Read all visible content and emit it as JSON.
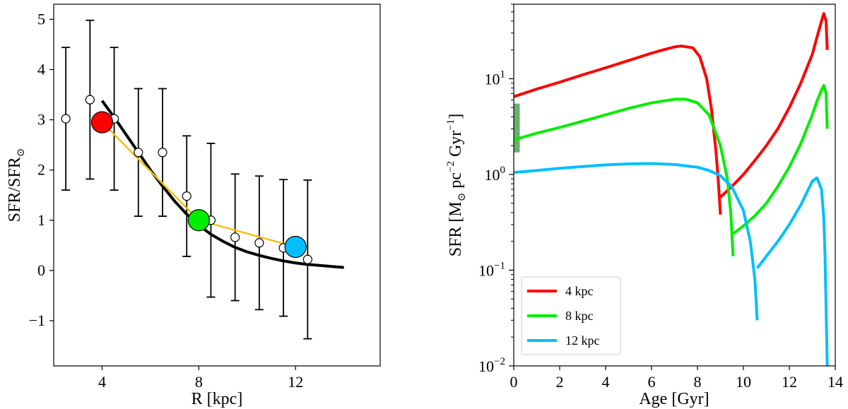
{
  "chart_data": [
    {
      "type": "scatter",
      "title": "",
      "xlabel": "R [kpc]",
      "ylabel_main": "SFR/SFR",
      "ylabel_sub": "⊙",
      "xlim": [
        2,
        15.5
      ],
      "ylim": [
        -1.9,
        5.3
      ],
      "xticks": [
        4,
        8,
        12
      ],
      "xtick_labels": [
        "4",
        "8",
        "12"
      ],
      "yticks": [
        -1,
        0,
        1,
        2,
        3,
        4,
        5
      ],
      "ytick_labels": [
        "−1",
        "0",
        "1",
        "2",
        "3",
        "4",
        "5"
      ],
      "observations": {
        "name": "data points with error bars",
        "x": [
          2.5,
          3.5,
          4.5,
          5.5,
          6.5,
          7.5,
          8.5,
          9.5,
          10.5,
          11.5,
          12.5
        ],
        "y": [
          3.02,
          3.4,
          3.02,
          2.35,
          2.35,
          1.48,
          1.0,
          0.66,
          0.55,
          0.45,
          0.22
        ],
        "err": [
          1.42,
          1.58,
          1.42,
          1.27,
          1.27,
          1.2,
          1.53,
          1.26,
          1.33,
          1.36,
          1.58
        ],
        "color": "#ffffff"
      },
      "fit_curve": {
        "name": "fit",
        "x": [
          4.0,
          4.5,
          5.0,
          5.5,
          6.0,
          6.5,
          7.0,
          7.5,
          8.0,
          8.5,
          9.0,
          9.5,
          10.0,
          10.5,
          11.0,
          11.5,
          12.0,
          12.5,
          13.0,
          13.5,
          14.0
        ],
        "y": [
          3.38,
          3.05,
          2.7,
          2.35,
          2.0,
          1.68,
          1.38,
          1.12,
          0.9,
          0.72,
          0.58,
          0.46,
          0.37,
          0.3,
          0.24,
          0.19,
          0.15,
          0.12,
          0.1,
          0.08,
          0.06
        ],
        "color": "#000000"
      },
      "model_line": {
        "name": "model",
        "x": [
          4,
          8,
          12
        ],
        "y": [
          2.95,
          1.0,
          0.47
        ],
        "color": "#f2c10f"
      },
      "model_points": [
        {
          "label": "4 kpc",
          "x": 4,
          "y": 2.95,
          "color": "#ff0000"
        },
        {
          "label": "8 kpc",
          "x": 8,
          "y": 1.0,
          "color": "#00ee00"
        },
        {
          "label": "12 kpc",
          "x": 12,
          "y": 0.47,
          "color": "#00bfff"
        }
      ]
    },
    {
      "type": "line",
      "title": "",
      "xlabel": "Age [Gyr]",
      "ylabel": "SFR [M⊙ pc⁻² Gyr⁻¹]",
      "ylabel_parts": [
        "SFR [M",
        "⊙",
        " pc",
        "−2",
        " Gyr",
        "−1",
        "]"
      ],
      "yscale": "log",
      "xlim": [
        0,
        14
      ],
      "ylim": [
        0.01,
        60
      ],
      "xticks": [
        0,
        2,
        4,
        6,
        8,
        10,
        12,
        14
      ],
      "xtick_labels": [
        "0",
        "2",
        "4",
        "6",
        "8",
        "10",
        "12",
        "14"
      ],
      "yticks": [
        0.01,
        0.1,
        1,
        10
      ],
      "ytick_labels": [
        {
          "base": "10",
          "exp": "−2"
        },
        {
          "base": "10",
          "exp": "−1"
        },
        {
          "base": "10",
          "exp": "0"
        },
        {
          "base": "10",
          "exp": "1"
        }
      ],
      "legend_position": "lower-left",
      "observed_band": {
        "x": [
          0,
          0.2
        ],
        "y": [
          1.7,
          5.5
        ],
        "color": "#2e8b2e"
      },
      "series": [
        {
          "name": "4 kpc",
          "color": "#ff0000",
          "segments": [
            {
              "x": [
                0,
                1,
                2,
                3,
                4,
                5,
                6,
                6.5,
                7,
                7.3,
                7.8,
                8.1,
                8.4,
                8.6,
                8.8,
                8.9,
                9.0
              ],
              "y": [
                6.5,
                7.8,
                9.2,
                11,
                13,
                15.5,
                18.5,
                20,
                21.5,
                22,
                21,
                17,
                10,
                5,
                1.8,
                0.9,
                0.38
              ]
            },
            {
              "x": [
                9.0,
                9.5,
                10,
                10.5,
                11,
                11.5,
                12,
                12.5,
                13,
                13.2,
                13.4,
                13.5,
                13.6,
                13.65
              ],
              "y": [
                0.58,
                0.75,
                1.0,
                1.4,
                2.0,
                3.0,
                5.0,
                9.0,
                18,
                27,
                40,
                48,
                40,
                20
              ]
            }
          ]
        },
        {
          "name": "8 kpc",
          "color": "#00ee00",
          "segments": [
            {
              "x": [
                0,
                1,
                2,
                3,
                4,
                5,
                6,
                7,
                7.5,
                8,
                8.5,
                9.0,
                9.3,
                9.45,
                9.55
              ],
              "y": [
                2.3,
                2.7,
                3.1,
                3.6,
                4.2,
                4.9,
                5.6,
                6.1,
                6.1,
                5.6,
                4.2,
                2.0,
                0.9,
                0.4,
                0.14
              ]
            },
            {
              "x": [
                9.55,
                10,
                10.5,
                11,
                11.5,
                12,
                12.5,
                13,
                13.2,
                13.4,
                13.5,
                13.6,
                13.65
              ],
              "y": [
                0.24,
                0.29,
                0.37,
                0.5,
                0.75,
                1.2,
                2.1,
                4.2,
                5.8,
                7.6,
                8.5,
                7.0,
                3.0
              ]
            }
          ]
        },
        {
          "name": "12 kpc",
          "color": "#00bfff",
          "segments": [
            {
              "x": [
                0,
                1,
                2,
                3,
                4,
                5,
                6,
                7,
                8,
                8.5,
                9,
                9.5,
                10,
                10.3,
                10.5,
                10.6
              ],
              "y": [
                1.05,
                1.1,
                1.16,
                1.21,
                1.26,
                1.29,
                1.3,
                1.27,
                1.19,
                1.1,
                0.97,
                0.74,
                0.42,
                0.2,
                0.08,
                0.03
              ]
            },
            {
              "x": [
                10.6,
                11,
                11.5,
                12,
                12.5,
                13,
                13.2,
                13.4,
                13.5,
                13.55,
                13.6,
                13.65
              ],
              "y": [
                0.105,
                0.14,
                0.2,
                0.3,
                0.48,
                0.85,
                0.92,
                0.7,
                0.35,
                0.15,
                0.04,
                0.01
              ]
            }
          ]
        }
      ]
    }
  ]
}
